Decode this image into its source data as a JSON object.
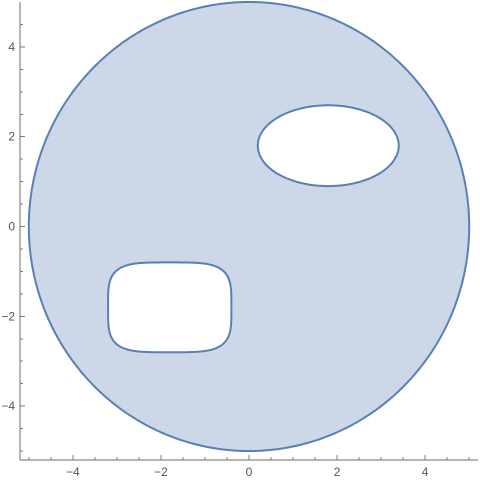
{
  "chart_data": {
    "type": "region",
    "xlim": [
      -5.2,
      5.2
    ],
    "ylim": [
      -5.2,
      5.0
    ],
    "grid": false,
    "x_ticks": [
      {
        "value": -4,
        "label": "−4"
      },
      {
        "value": -2,
        "label": "−2"
      },
      {
        "value": 0,
        "label": "0"
      },
      {
        "value": 2,
        "label": "2"
      },
      {
        "value": 4,
        "label": "4"
      }
    ],
    "y_ticks": [
      {
        "value": 4,
        "label": "4"
      },
      {
        "value": 2,
        "label": "2"
      },
      {
        "value": 0,
        "label": "0"
      },
      {
        "value": -2,
        "label": "−2"
      },
      {
        "value": -4,
        "label": "−4"
      }
    ],
    "x_minor_ticks": [
      -5,
      -4.5,
      -3.5,
      -3,
      -2.5,
      -1.5,
      -1,
      -0.5,
      0.5,
      1,
      1.5,
      2.5,
      3,
      3.5,
      4.5,
      5
    ],
    "y_minor_ticks": [
      -5,
      -4.5,
      -3.5,
      -3,
      -2.5,
      -1.5,
      -1,
      -0.5,
      0.5,
      1,
      1.5,
      2.5,
      3,
      3.5,
      4.5
    ],
    "region": {
      "outer": {
        "shape": "circle",
        "center": [
          0,
          0
        ],
        "radius": 5
      },
      "holes": [
        {
          "shape": "ellipse",
          "center": [
            1.8,
            1.8
          ],
          "rx": 1.6,
          "ry": 0.9
        },
        {
          "shape": "superellipse",
          "center": [
            -1.8,
            -1.8
          ],
          "rx": 1.4,
          "ry": 1.0,
          "exponent": 4
        }
      ],
      "fill_color": "#ccd8e7",
      "edge_color": "#5a7fb5"
    },
    "axis_color": "#6e6e6e",
    "label_color": "#555555"
  }
}
